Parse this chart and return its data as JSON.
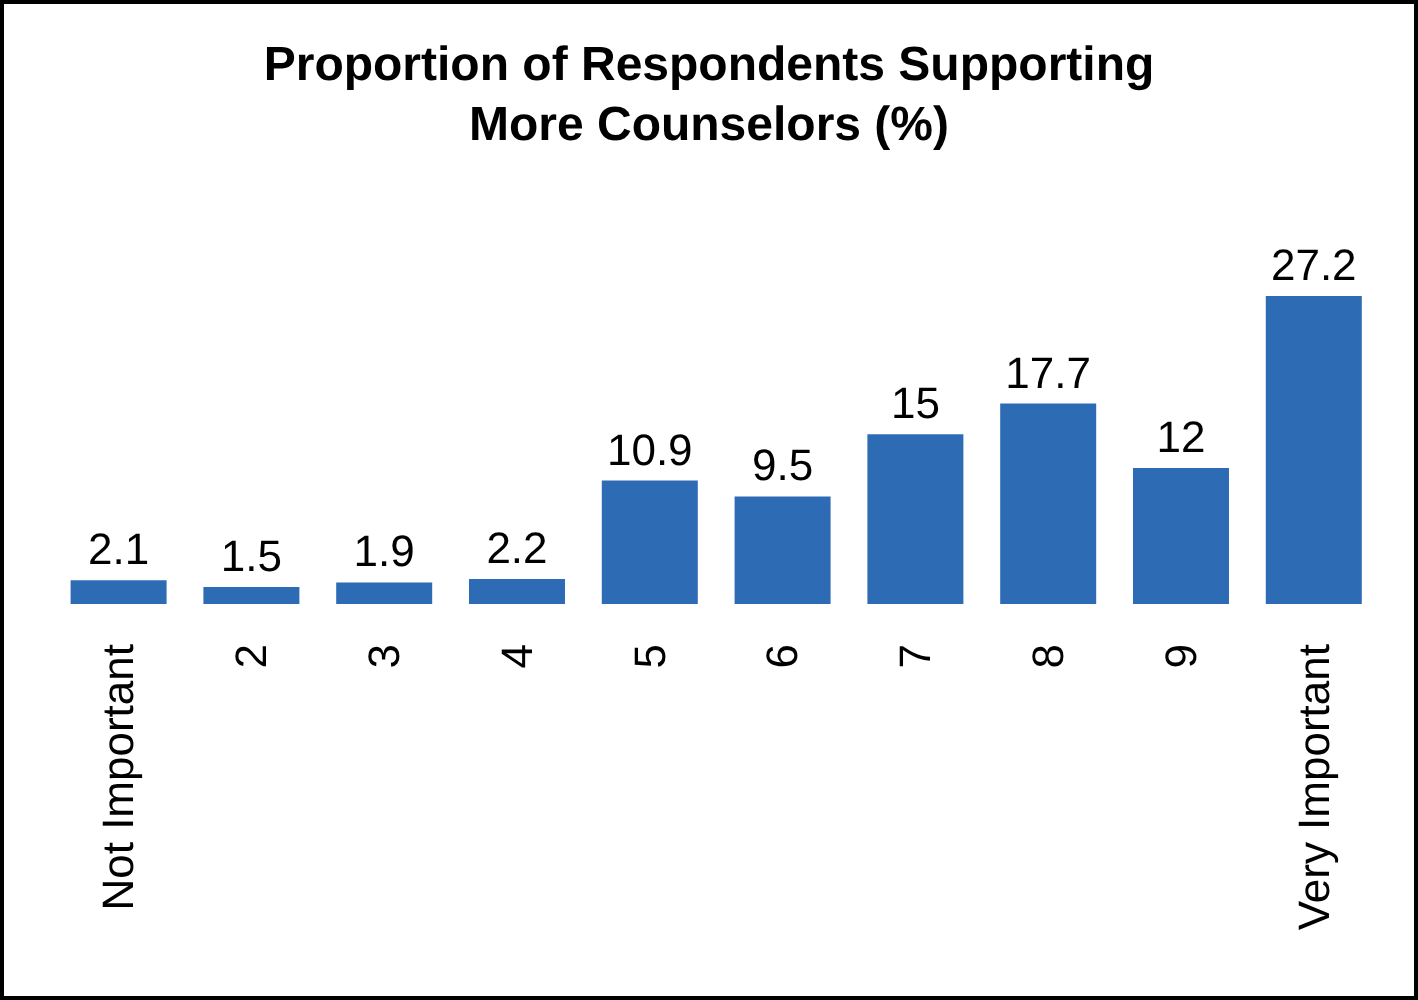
{
  "chart_data": {
    "type": "bar",
    "title": "Proportion of Respondents Supporting More Counselors (%)",
    "categories": [
      "Not Important",
      "2",
      "3",
      "4",
      "5",
      "6",
      "7",
      "8",
      "9",
      "Very Important"
    ],
    "values": [
      2.1,
      1.5,
      1.9,
      2.2,
      10.9,
      9.5,
      15,
      17.7,
      12,
      27.2
    ],
    "color": "#2e6bb5",
    "data_labels": true,
    "grid": false,
    "legend": false
  }
}
